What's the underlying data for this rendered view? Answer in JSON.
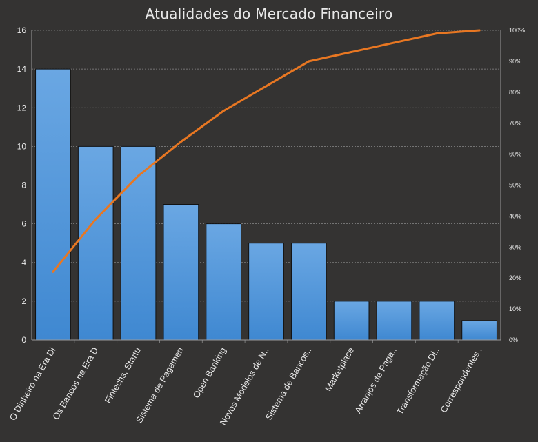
{
  "chart_data": {
    "type": "bar",
    "title": "Atualidades do Mercado  Financeiro",
    "categories": [
      "O Dinheiro na Era Di",
      "Os Bancos na Era D",
      "Fintechs, Startu",
      "Sistema de Pagamen",
      "Open Banking",
      "Novos Modelos de N..",
      "Sistema de Bancos..",
      "Marketplace",
      "Arranjos de Paga..",
      "Transformação Di..",
      "Correspondentes ."
    ],
    "series": [
      {
        "type": "bar",
        "values": [
          14,
          10,
          10,
          7,
          6,
          5,
          5,
          2,
          2,
          2,
          1
        ]
      },
      {
        "type": "line",
        "axis": "right",
        "values": [
          22,
          39,
          53,
          64,
          74,
          82,
          90,
          93,
          96,
          99,
          100
        ]
      }
    ],
    "ylim": [
      0,
      16
    ],
    "yticks": [
      "0",
      "2",
      "4",
      "6",
      "8",
      "10",
      "12",
      "14",
      "16"
    ],
    "y2lim": [
      0,
      100
    ],
    "y2ticks": [
      "0%",
      "10%",
      "20%",
      "30%",
      "40%",
      "50%",
      "60%",
      "70%",
      "80%",
      "90%",
      "100%"
    ],
    "grid": true,
    "colors": {
      "background": "#343332",
      "bar": "#4a90d6",
      "line": "#e87722",
      "grid": "#8a8a8a",
      "text": "#e8e8e8"
    }
  }
}
